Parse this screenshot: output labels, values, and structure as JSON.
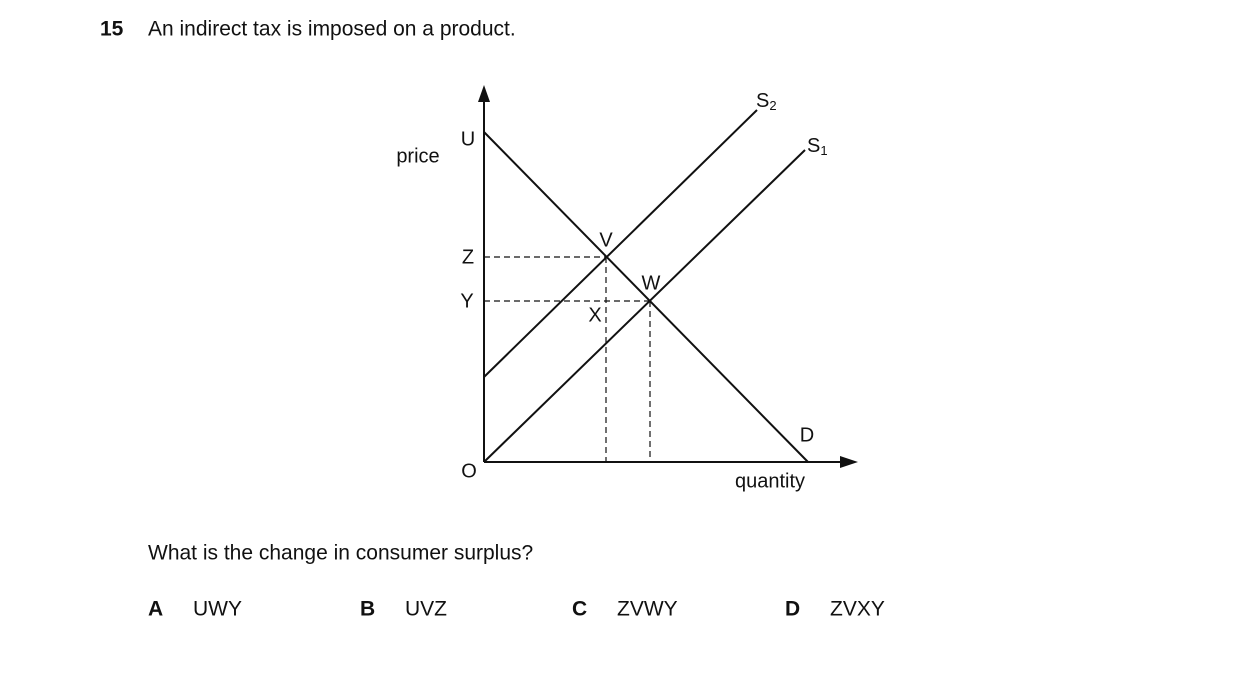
{
  "question": {
    "number": "15",
    "stem": "An indirect tax is imposed on a product.",
    "prompt": "What is the change in consumer surplus?"
  },
  "diagram": {
    "y_axis_label": "price",
    "x_axis_label": "quantity",
    "points": {
      "U": "U",
      "Z": "Z",
      "Y": "Y",
      "O": "O",
      "V": "V",
      "W": "W",
      "X": "X",
      "D": "D"
    },
    "supply_2": {
      "main": "S",
      "sub": "2"
    },
    "supply_1": {
      "main": "S",
      "sub": "1"
    }
  },
  "options": [
    {
      "letter": "A",
      "text": "UWY"
    },
    {
      "letter": "B",
      "text": "UVZ"
    },
    {
      "letter": "C",
      "text": "ZVWY"
    },
    {
      "letter": "D",
      "text": "ZVXY"
    }
  ]
}
